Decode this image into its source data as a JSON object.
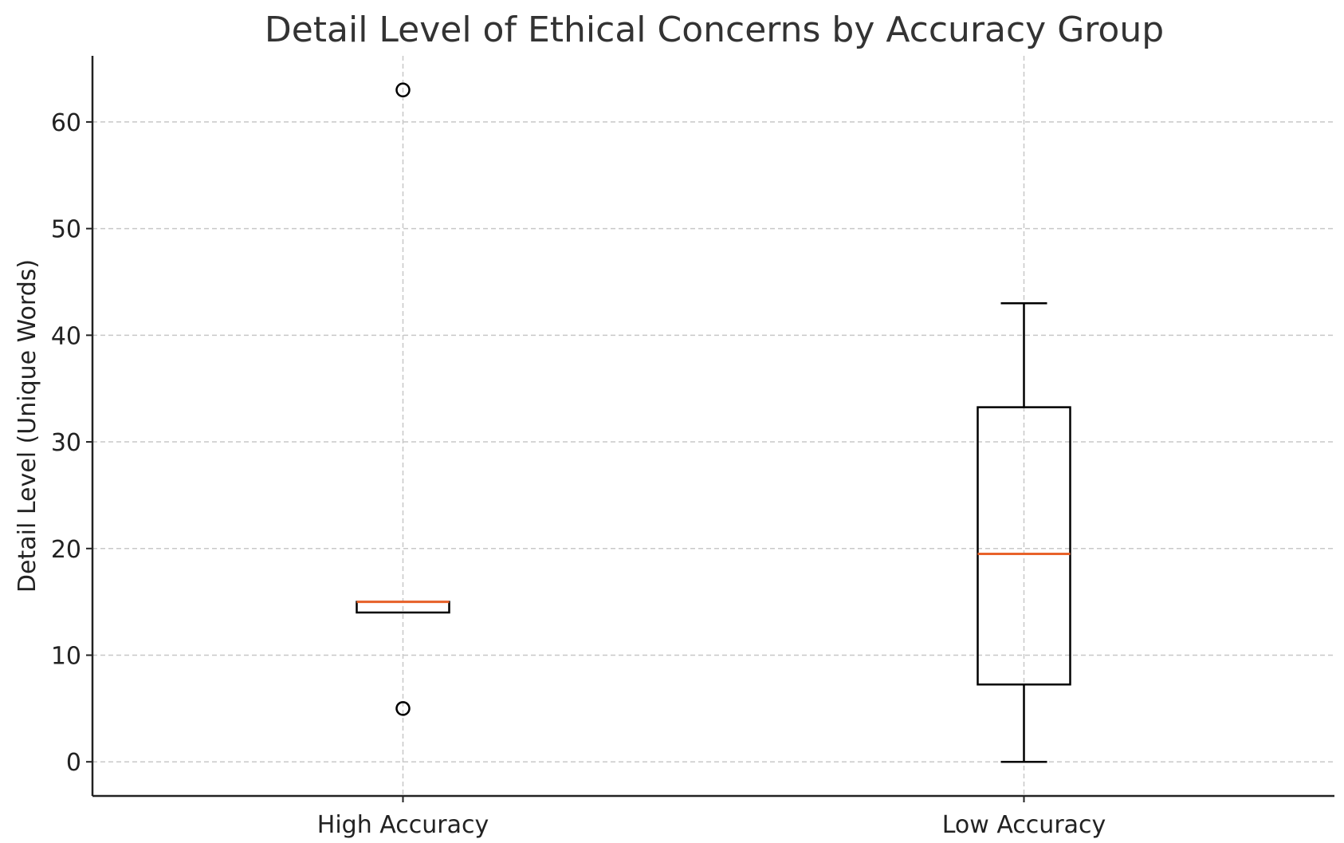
{
  "chart_data": {
    "type": "box",
    "title": "Detail Level of Ethical Concerns by Accuracy Group",
    "xlabel": "",
    "ylabel": "Detail Level (Unique Words)",
    "categories": [
      "High Accuracy",
      "Low Accuracy"
    ],
    "boxes": [
      {
        "label": "High Accuracy",
        "whisker_low": 14,
        "q1": 14,
        "median": 15,
        "q3": 15,
        "whisker_high": 15,
        "fliers": [
          63,
          5
        ]
      },
      {
        "label": "Low Accuracy",
        "whisker_low": 0,
        "q1": 7.25,
        "median": 19.5,
        "q3": 33.25,
        "whisker_high": 43,
        "fliers": []
      }
    ],
    "ylim": [
      -3.2,
      66.2
    ],
    "yticks": [
      0,
      10,
      20,
      30,
      40,
      50,
      60
    ],
    "grid": true,
    "colors": {
      "median": "#e8622a",
      "box": "#000000",
      "grid": "#c8c8c8",
      "text": "#333333"
    }
  }
}
